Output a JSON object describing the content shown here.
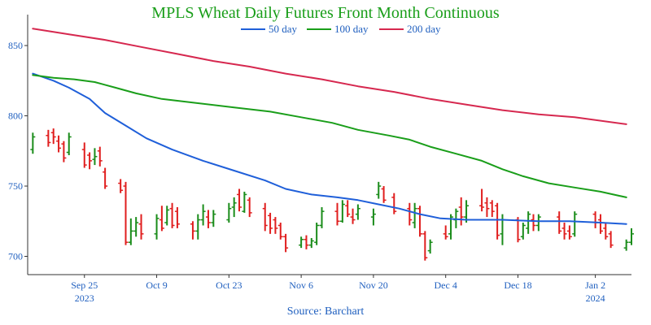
{
  "chart_data": {
    "type": "line",
    "title": "MPLS Wheat Daily Futures Front Month Continuous",
    "source": "Source: Barchart",
    "legend": {
      "placement": "top-center",
      "entries": [
        "50 day",
        "100 day",
        "200 day"
      ]
    },
    "grid": false,
    "ylim": [
      687,
      872
    ],
    "yticks": [
      700,
      750,
      800,
      850
    ],
    "xlim": [
      "2023-09-14",
      "2024-01-09"
    ],
    "xticks": [
      {
        "date": "2023-09-25",
        "label": "Sep 25",
        "year": "2023"
      },
      {
        "date": "2023-10-09",
        "label": "Oct 9",
        "year": ""
      },
      {
        "date": "2023-10-23",
        "label": "Oct 23",
        "year": ""
      },
      {
        "date": "2023-11-06",
        "label": "Nov 6",
        "year": ""
      },
      {
        "date": "2023-11-20",
        "label": "Nov 20",
        "year": ""
      },
      {
        "date": "2023-12-04",
        "label": "Dec 4",
        "year": ""
      },
      {
        "date": "2023-12-18",
        "label": "Dec 18",
        "year": ""
      },
      {
        "date": "2024-01-02",
        "label": "Jan 2",
        "year": "2024"
      }
    ],
    "series": [
      {
        "name": "50 day",
        "color": "#1f5fd9",
        "points": [
          [
            "2023-09-15",
            830
          ],
          [
            "2023-09-19",
            825
          ],
          [
            "2023-09-22",
            820
          ],
          [
            "2023-09-26",
            812
          ],
          [
            "2023-09-29",
            802
          ],
          [
            "2023-10-03",
            793
          ],
          [
            "2023-10-07",
            784
          ],
          [
            "2023-10-12",
            776
          ],
          [
            "2023-10-18",
            768
          ],
          [
            "2023-10-24",
            761
          ],
          [
            "2023-10-30",
            754
          ],
          [
            "2023-11-03",
            748
          ],
          [
            "2023-11-08",
            744
          ],
          [
            "2023-11-13",
            742
          ],
          [
            "2023-11-17",
            740
          ],
          [
            "2023-11-21",
            737
          ],
          [
            "2023-11-25",
            734
          ],
          [
            "2023-11-29",
            730
          ],
          [
            "2023-12-03",
            727
          ],
          [
            "2023-12-08",
            726
          ],
          [
            "2023-12-15",
            726
          ],
          [
            "2023-12-22",
            725
          ],
          [
            "2023-12-28",
            725
          ],
          [
            "2024-01-03",
            724
          ],
          [
            "2024-01-08",
            723
          ]
        ]
      },
      {
        "name": "100 day",
        "color": "#1a9e1a",
        "points": [
          [
            "2023-09-15",
            829
          ],
          [
            "2023-09-19",
            827
          ],
          [
            "2023-09-23",
            826
          ],
          [
            "2023-09-27",
            824
          ],
          [
            "2023-10-01",
            820
          ],
          [
            "2023-10-05",
            816
          ],
          [
            "2023-10-10",
            812
          ],
          [
            "2023-10-17",
            809
          ],
          [
            "2023-10-24",
            806
          ],
          [
            "2023-10-31",
            803
          ],
          [
            "2023-11-06",
            799
          ],
          [
            "2023-11-12",
            795
          ],
          [
            "2023-11-17",
            790
          ],
          [
            "2023-11-23",
            786
          ],
          [
            "2023-11-27",
            783
          ],
          [
            "2023-12-01",
            778
          ],
          [
            "2023-12-06",
            773
          ],
          [
            "2023-12-11",
            768
          ],
          [
            "2023-12-15",
            762
          ],
          [
            "2023-12-19",
            757
          ],
          [
            "2023-12-24",
            752
          ],
          [
            "2023-12-29",
            749
          ],
          [
            "2024-01-03",
            746
          ],
          [
            "2024-01-08",
            742
          ]
        ]
      },
      {
        "name": "200 day",
        "color": "#d6284f",
        "points": [
          [
            "2023-09-15",
            862
          ],
          [
            "2023-09-22",
            858
          ],
          [
            "2023-09-29",
            854
          ],
          [
            "2023-10-06",
            849
          ],
          [
            "2023-10-13",
            844
          ],
          [
            "2023-10-20",
            839
          ],
          [
            "2023-10-27",
            835
          ],
          [
            "2023-11-03",
            830
          ],
          [
            "2023-11-10",
            826
          ],
          [
            "2023-11-17",
            821
          ],
          [
            "2023-11-24",
            817
          ],
          [
            "2023-12-01",
            812
          ],
          [
            "2023-12-08",
            808
          ],
          [
            "2023-12-15",
            804
          ],
          [
            "2023-12-22",
            801
          ],
          [
            "2023-12-29",
            799
          ],
          [
            "2024-01-08",
            794
          ]
        ]
      }
    ],
    "bar_colors": {
      "up": "#1a8c1a",
      "down": "#e01e1e"
    },
    "ohlc": [
      [
        "2023-09-15",
        776,
        788,
        773,
        785
      ],
      [
        "2023-09-18",
        786,
        790,
        778,
        781
      ],
      [
        "2023-09-19",
        788,
        791,
        780,
        785
      ],
      [
        "2023-09-20",
        782,
        786,
        774,
        777
      ],
      [
        "2023-09-21",
        780,
        782,
        767,
        770
      ],
      [
        "2023-09-22",
        774,
        788,
        772,
        785
      ],
      [
        "2023-09-25",
        776,
        781,
        763,
        765
      ],
      [
        "2023-09-26",
        772,
        774,
        762,
        768
      ],
      [
        "2023-09-27",
        769,
        777,
        765,
        771
      ],
      [
        "2023-09-28",
        775,
        778,
        764,
        768
      ],
      [
        "2023-09-29",
        760,
        763,
        748,
        750
      ],
      [
        "2023-10-02",
        752,
        755,
        745,
        747
      ],
      [
        "2023-10-03",
        750,
        753,
        708,
        710
      ],
      [
        "2023-10-04",
        710,
        727,
        708,
        718
      ],
      [
        "2023-10-05",
        718,
        728,
        714,
        724
      ],
      [
        "2023-10-06",
        723,
        730,
        712,
        716
      ],
      [
        "2023-10-09",
        716,
        730,
        712,
        727
      ],
      [
        "2023-10-10",
        726,
        736,
        718,
        720
      ],
      [
        "2023-10-11",
        724,
        736,
        722,
        733
      ],
      [
        "2023-10-12",
        734,
        738,
        720,
        722
      ],
      [
        "2023-10-13",
        732,
        735,
        720,
        723
      ],
      [
        "2023-10-16",
        723,
        725,
        712,
        718
      ],
      [
        "2023-10-17",
        718,
        730,
        712,
        726
      ],
      [
        "2023-10-18",
        726,
        737,
        722,
        732
      ],
      [
        "2023-10-19",
        728,
        733,
        720,
        724
      ],
      [
        "2023-10-20",
        724,
        733,
        721,
        730
      ],
      [
        "2023-10-23",
        726,
        738,
        724,
        734
      ],
      [
        "2023-10-24",
        735,
        742,
        728,
        738
      ],
      [
        "2023-10-25",
        744,
        748,
        732,
        735
      ],
      [
        "2023-10-26",
        732,
        746,
        731,
        744
      ],
      [
        "2023-10-27",
        740,
        742,
        728,
        731
      ],
      [
        "2023-10-30",
        734,
        738,
        718,
        722
      ],
      [
        "2023-10-31",
        729,
        731,
        716,
        720
      ],
      [
        "2023-11-01",
        726,
        728,
        716,
        720
      ],
      [
        "2023-11-02",
        722,
        724,
        712,
        714
      ],
      [
        "2023-11-03",
        714,
        716,
        703,
        706
      ],
      [
        "2023-11-06",
        708,
        714,
        706,
        712
      ],
      [
        "2023-11-07",
        712,
        715,
        705,
        708
      ],
      [
        "2023-11-08",
        708,
        713,
        706,
        711
      ],
      [
        "2023-11-09",
        710,
        724,
        708,
        722
      ],
      [
        "2023-11-10",
        722,
        735,
        720,
        732
      ],
      [
        "2023-11-13",
        732,
        738,
        722,
        725
      ],
      [
        "2023-11-14",
        725,
        740,
        724,
        737
      ],
      [
        "2023-11-15",
        736,
        740,
        728,
        730
      ],
      [
        "2023-11-16",
        728,
        734,
        723,
        726
      ],
      [
        "2023-11-17",
        730,
        737,
        726,
        734
      ],
      [
        "2023-11-20",
        728,
        734,
        722,
        730
      ],
      [
        "2023-11-21",
        744,
        753,
        741,
        750
      ],
      [
        "2023-11-22",
        748,
        750,
        738,
        740
      ],
      [
        "2023-11-24",
        742,
        745,
        730,
        732
      ],
      [
        "2023-11-27",
        734,
        738,
        722,
        726
      ],
      [
        "2023-11-28",
        724,
        738,
        720,
        734
      ],
      [
        "2023-11-29",
        734,
        736,
        714,
        716
      ],
      [
        "2023-11-30",
        716,
        718,
        697,
        699
      ],
      [
        "2023-12-01",
        704,
        712,
        702,
        710
      ],
      [
        "2023-12-04",
        716,
        722,
        712,
        714
      ],
      [
        "2023-12-05",
        716,
        730,
        712,
        728
      ],
      [
        "2023-12-06",
        726,
        734,
        720,
        732
      ],
      [
        "2023-12-07",
        735,
        742,
        722,
        728
      ],
      [
        "2023-12-08",
        728,
        740,
        724,
        736
      ],
      [
        "2023-12-11",
        736,
        748,
        732,
        735
      ],
      [
        "2023-12-12",
        738,
        742,
        728,
        734
      ],
      [
        "2023-12-13",
        738,
        740,
        728,
        732
      ],
      [
        "2023-12-14",
        736,
        738,
        712,
        715
      ],
      [
        "2023-12-15",
        716,
        730,
        708,
        726
      ],
      [
        "2023-12-18",
        726,
        728,
        710,
        712
      ],
      [
        "2023-12-19",
        714,
        724,
        712,
        722
      ],
      [
        "2023-12-20",
        720,
        732,
        716,
        730
      ],
      [
        "2023-12-21",
        726,
        730,
        718,
        722
      ],
      [
        "2023-12-22",
        722,
        730,
        718,
        728
      ],
      [
        "2023-12-26",
        728,
        732,
        716,
        718
      ],
      [
        "2023-12-27",
        720,
        724,
        712,
        716
      ],
      [
        "2023-12-28",
        718,
        722,
        712,
        714
      ],
      [
        "2023-12-29",
        716,
        732,
        714,
        730
      ],
      [
        "2024-01-02",
        730,
        732,
        720,
        724
      ],
      [
        "2024-01-03",
        726,
        730,
        716,
        718
      ],
      [
        "2024-01-04",
        720,
        724,
        712,
        714
      ],
      [
        "2024-01-05",
        716,
        718,
        706,
        708
      ],
      [
        "2024-01-08",
        706,
        712,
        704,
        710
      ],
      [
        "2024-01-09",
        710,
        720,
        708,
        716
      ]
    ]
  }
}
